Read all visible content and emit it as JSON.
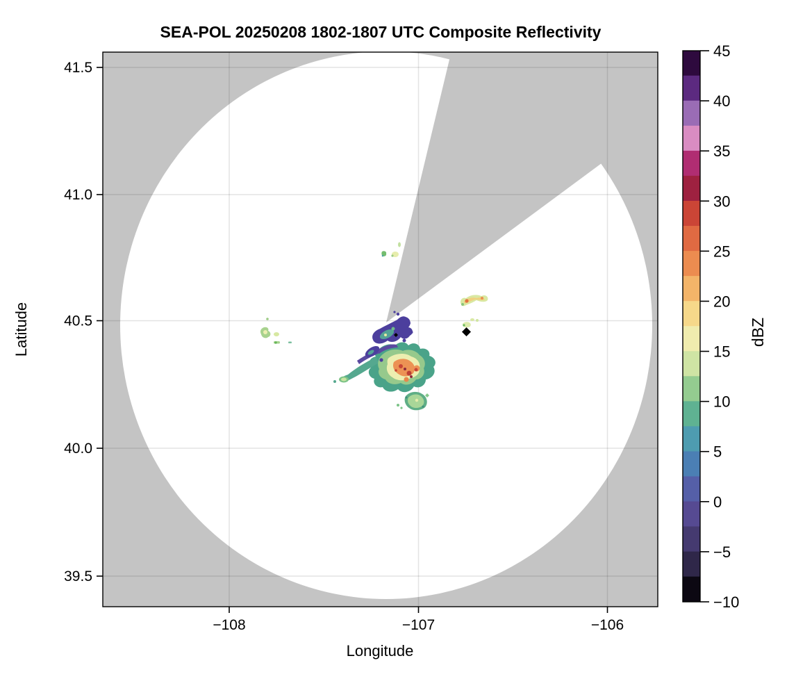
{
  "title": "SEA-POL 20250208 1802-1807 UTC Composite Reflectivity",
  "axes": {
    "xlabel": "Longitude",
    "ylabel": "Latitude",
    "x_ticks": [
      "−108",
      "−107",
      "−106"
    ],
    "y_ticks": [
      "41.5",
      "41.0",
      "40.5",
      "40.0",
      "39.5"
    ]
  },
  "colorbar": {
    "label": "dBZ",
    "tick_labels": [
      "45",
      "40",
      "35",
      "30",
      "25",
      "20",
      "15",
      "10",
      "5",
      "0",
      "−5",
      "−10"
    ],
    "vmin": -10,
    "vmax": 45,
    "band_colors_top_to_bottom": [
      "#2e0a3e",
      "#5c2a80",
      "#9a6cb5",
      "#d98cc2",
      "#b02d72",
      "#9e2140",
      "#cb4536",
      "#e06a42",
      "#ec8c50",
      "#f3b469",
      "#f6d88a",
      "#f0ecae",
      "#cfe4a4",
      "#94cc90",
      "#5fb292",
      "#4e9cb0",
      "#4b7fb4",
      "#555fa8",
      "#564a92",
      "#453a70",
      "#2f2749",
      "#0c0812"
    ]
  },
  "chart_data": {
    "type": "heatmap",
    "title": "SEA-POL 20250208 1802-1807 UTC Composite Reflectivity",
    "xlabel": "Longitude",
    "ylabel": "Latitude",
    "xlim": [
      -108.67,
      -105.76
    ],
    "ylim": [
      39.38,
      41.56
    ],
    "grid": true,
    "colormap": "ChaseSpectral-like (black -10 dBZ, purple-blue 0, teal 7, green 11, pale-yellow 16, orange 23, red 30, magenta 35, purple 40, dark-purple 45)",
    "value_units": "dBZ",
    "value_range": [
      -10,
      45
    ],
    "radar": {
      "center_lon": -107.17,
      "center_lat": 40.49,
      "scan_disc_radius_deg_lat": 1.08,
      "scan_disc_radius_deg_lon": 1.4,
      "blocked_sector_azimuth_deg": [
        13,
        53
      ],
      "background_nodata_color": "#c4c4c4",
      "clear_air_color": "#ffffff"
    },
    "site_markers": [
      {
        "shape": "diamond",
        "color": "#000000",
        "lon": -106.75,
        "lat": 40.45
      },
      {
        "shape": "diamond",
        "color": "#000000",
        "lon": -107.12,
        "lat": 40.44
      }
    ],
    "echo_regions": [
      {
        "name": "main-storm-cell",
        "lon": -107.09,
        "lat": 40.3,
        "extent_deg": [
          0.48,
          0.19
        ],
        "dbz_edge": 7,
        "dbz_interior": 17,
        "dbz_core_max": 33
      },
      {
        "name": "low-dbz-band-near-radar",
        "lon": -107.14,
        "lat": 40.46,
        "extent_deg": [
          0.2,
          0.1
        ],
        "dbz_edge": 0,
        "dbz_core_max": 12
      },
      {
        "name": "southern-small-cell",
        "lon": -107.02,
        "lat": 40.18,
        "extent_deg": [
          0.12,
          0.06
        ],
        "dbz_edge": 7,
        "dbz_core_max": 17
      },
      {
        "name": "northeast-streak",
        "lon": -106.71,
        "lat": 40.58,
        "extent_deg": [
          0.15,
          0.04
        ],
        "dbz_edge": 13,
        "dbz_core_max": 27
      },
      {
        "name": "northeast-specks",
        "lon": -106.72,
        "lat": 40.49,
        "extent_deg": [
          0.08,
          0.03
        ],
        "dbz_edge": 12,
        "dbz_core_max": 16
      },
      {
        "name": "western-specks",
        "lon": -107.78,
        "lat": 40.44,
        "extent_deg": [
          0.15,
          0.1
        ],
        "dbz_edge": 10,
        "dbz_core_max": 18
      },
      {
        "name": "northern-specks",
        "lon": -107.16,
        "lat": 40.76,
        "extent_deg": [
          0.09,
          0.05
        ],
        "dbz_edge": 10,
        "dbz_core_max": 17
      }
    ]
  }
}
